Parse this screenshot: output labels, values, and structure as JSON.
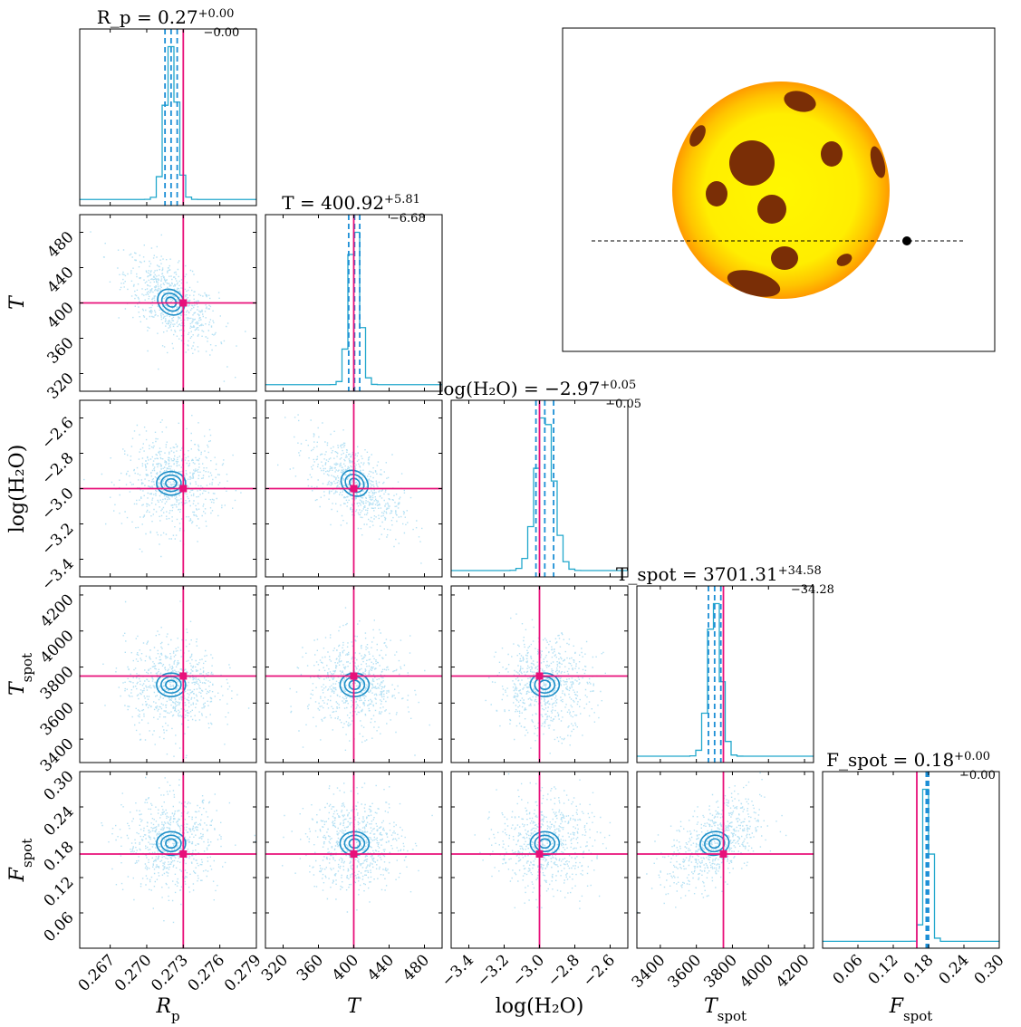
{
  "chart_data": {
    "type": "scatter",
    "subtype": "corner-plot",
    "parameters": [
      {
        "key": "Rp",
        "label": "R_p",
        "range": [
          0.2645,
          0.279
        ],
        "ticks": [
          0.267,
          0.27,
          0.273,
          0.276,
          0.279
        ],
        "tick_labels": [
          "0.267",
          "0.270",
          "0.273",
          "0.276",
          "0.279"
        ],
        "truth": 0.273,
        "median": 0.272,
        "q_low": 0.2715,
        "q_high": 0.2725,
        "title": "R_p = 0.27",
        "title_plus": "+0.00",
        "title_minus": "−0.00"
      },
      {
        "key": "T",
        "label": "T",
        "range": [
          300,
          500
        ],
        "ticks": [
          320,
          360,
          400,
          440,
          480
        ],
        "tick_labels": [
          "320",
          "360",
          "400",
          "440",
          "480"
        ],
        "truth": 400,
        "median": 400.92,
        "q_low": 394.24,
        "q_high": 406.73,
        "title": "T = 400.92",
        "title_plus": "+5.81",
        "title_minus": "−6.68"
      },
      {
        "key": "logH2O",
        "label": "log(H₂O)",
        "range": [
          -3.5,
          -2.5
        ],
        "ticks": [
          -3.4,
          -3.2,
          -3.0,
          -2.8,
          -2.6
        ],
        "tick_labels": [
          "−3.4",
          "−3.2",
          "−3.0",
          "−2.8",
          "−2.6"
        ],
        "truth": -3.0,
        "median": -2.97,
        "q_low": -3.02,
        "q_high": -2.92,
        "title": "log(H₂O) = −2.97",
        "title_plus": "+0.05",
        "title_minus": "−0.05"
      },
      {
        "key": "Tspot",
        "label": "T_spot",
        "range": [
          3270,
          4250
        ],
        "ticks": [
          3400,
          3600,
          3800,
          4000,
          4200
        ],
        "tick_labels": [
          "3400",
          "3600",
          "3800",
          "4000",
          "4200"
        ],
        "truth": 3750,
        "median": 3701.31,
        "q_low": 3667.03,
        "q_high": 3735.89,
        "title": "T_spot = 3701.31",
        "title_plus": "+34.58",
        "title_minus": "−34.28"
      },
      {
        "key": "Fspot",
        "label": "F_spot",
        "range": [
          0.0,
          0.3
        ],
        "ticks": [
          0.06,
          0.12,
          0.18,
          0.24,
          0.3
        ],
        "tick_labels": [
          "0.06",
          "0.12",
          "0.18",
          "0.24",
          "0.30"
        ],
        "truth": 0.16,
        "median": 0.178,
        "q_low": 0.176,
        "q_high": 0.18,
        "title": "F_spot = 0.18",
        "title_plus": "+0.00",
        "title_minus": "−0.00"
      }
    ],
    "colors": {
      "samples": "#2aa9e0",
      "contour": "#1e8fc8",
      "truth": "#e8107a",
      "histogram": "#22a8cc"
    },
    "star_inset": {
      "star_color": "#ffee00",
      "limb_color": "#ff9900",
      "spot_color": "#7a2e06",
      "planet_color": "#000000",
      "transit_chord": "dashed"
    }
  }
}
